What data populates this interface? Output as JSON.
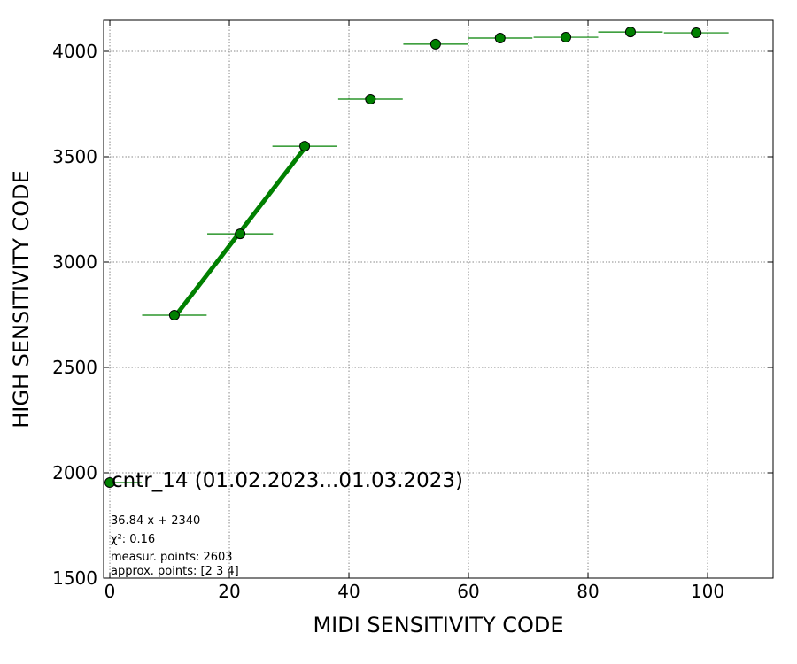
{
  "chart_data": {
    "type": "scatter",
    "xlabel": "MIDI SENSITIVITY CODE",
    "ylabel": "HIGH SENSITIVITY CODE",
    "xlim": [
      -1.04,
      110.96
    ],
    "ylim": [
      1500,
      4147
    ],
    "xticks": [
      0,
      20,
      40,
      60,
      80,
      100
    ],
    "yticks": [
      1500,
      2000,
      2500,
      3000,
      3500,
      4000
    ],
    "grid": true,
    "legend": "lower left",
    "series": [
      {
        "name": "cntr_14 (01.02.2023...01.03.2023)",
        "color": "#008000",
        "x": [
          10.8,
          21.8,
          32.6,
          43.6,
          54.5,
          65.3,
          76.3,
          87.1,
          98.1
        ],
        "values": [
          2748,
          3134,
          3550,
          3773,
          4034,
          4063,
          4067,
          4092,
          4088
        ],
        "xerr": [
          5.4,
          5.5,
          5.4,
          5.4,
          5.4,
          5.4,
          5.4,
          5.4,
          5.4
        ]
      }
    ],
    "fit": {
      "color": "#008000",
      "x": [
        10.8,
        32.6
      ],
      "values": [
        2738,
        3541
      ]
    },
    "annotations": [
      "36.84 x + 2340",
      "χ²: 0.16",
      "measur. points: 2603",
      "approx. points: [2 3 4]"
    ]
  }
}
